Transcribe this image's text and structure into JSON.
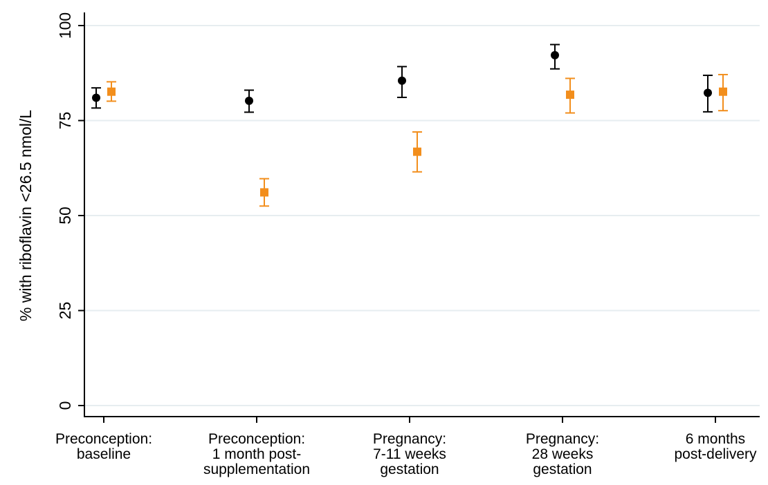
{
  "chart_data": {
    "type": "scatter",
    "ylabel": "% with riboflavin <26.5 nmol/L",
    "xlabel": "",
    "ylim": [
      0,
      100
    ],
    "yticks": [
      0,
      25,
      50,
      75,
      100
    ],
    "grid": true,
    "categories": [
      [
        "Preconception:",
        "baseline"
      ],
      [
        "Preconception:",
        "1 month post-",
        "supplementation"
      ],
      [
        "Pregnancy:",
        "7-11 weeks",
        "gestation"
      ],
      [
        "Pregnancy:",
        "28 weeks",
        "gestation"
      ],
      [
        "6 months",
        "post-delivery"
      ]
    ],
    "series": [
      {
        "marker": "circle",
        "color": "#000000",
        "values": [
          81,
          80.2,
          85.5,
          92.2,
          82.3
        ],
        "lower": [
          78.3,
          77.2,
          81.1,
          88.6,
          77.3
        ],
        "upper": [
          83.6,
          83.0,
          89.2,
          95.0,
          86.9
        ]
      },
      {
        "marker": "square",
        "color": "#f28e1c",
        "values": [
          82.6,
          56.1,
          66.8,
          81.8,
          82.6
        ],
        "lower": [
          80.1,
          52.5,
          61.5,
          77.0,
          77.6
        ],
        "upper": [
          85.2,
          59.7,
          72.0,
          86.1,
          87.1
        ]
      }
    ]
  }
}
